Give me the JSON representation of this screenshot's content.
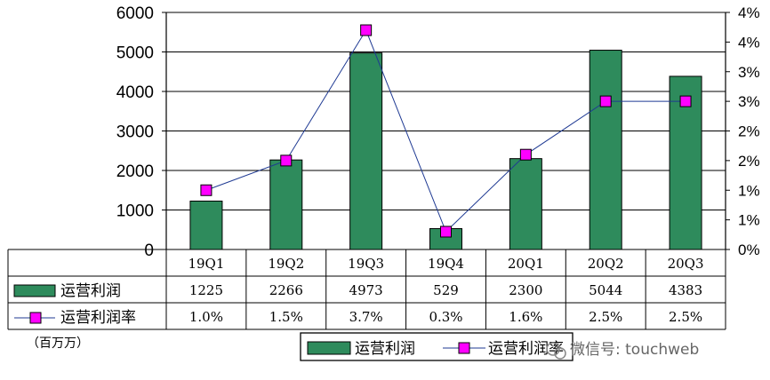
{
  "chart_data": {
    "type": "bar",
    "categories": [
      "19Q1",
      "19Q2",
      "19Q3",
      "19Q4",
      "20Q1",
      "20Q2",
      "20Q3"
    ],
    "series": [
      {
        "name": "运营利润",
        "kind": "bar",
        "axis": "left",
        "color": "#2e8b5c",
        "values": [
          1225,
          2266,
          4973,
          529,
          2300,
          5044,
          4383
        ],
        "labels": [
          "1225",
          "2266",
          "4973",
          "529",
          "2300",
          "5044",
          "4383"
        ]
      },
      {
        "name": "运营利润率",
        "kind": "line",
        "axis": "right",
        "color": "#ff00ff",
        "line_color": "#1f3a93",
        "values": [
          1.0,
          1.5,
          3.7,
          0.3,
          1.6,
          2.5,
          2.5
        ],
        "labels": [
          "1.0%",
          "1.5%",
          "3.7%",
          "0.3%",
          "1.6%",
          "2.5%",
          "2.5%"
        ]
      }
    ],
    "y_left": {
      "ylim": [
        0,
        6000
      ],
      "ticks": [
        "0",
        "1000",
        "2000",
        "3000",
        "4000",
        "5000",
        "6000"
      ]
    },
    "y_right": {
      "ylim": [
        0,
        4
      ],
      "ticks": [
        "0%",
        "1%",
        "1%",
        "2%",
        "2%",
        "3%",
        "3%",
        "4%",
        "4%"
      ]
    },
    "unit_label": "（百万万）",
    "grid": true,
    "legend": {
      "position": "bottom",
      "items": [
        "运营利润",
        "运营利润率"
      ]
    }
  },
  "watermark": "微信号: touchweb"
}
